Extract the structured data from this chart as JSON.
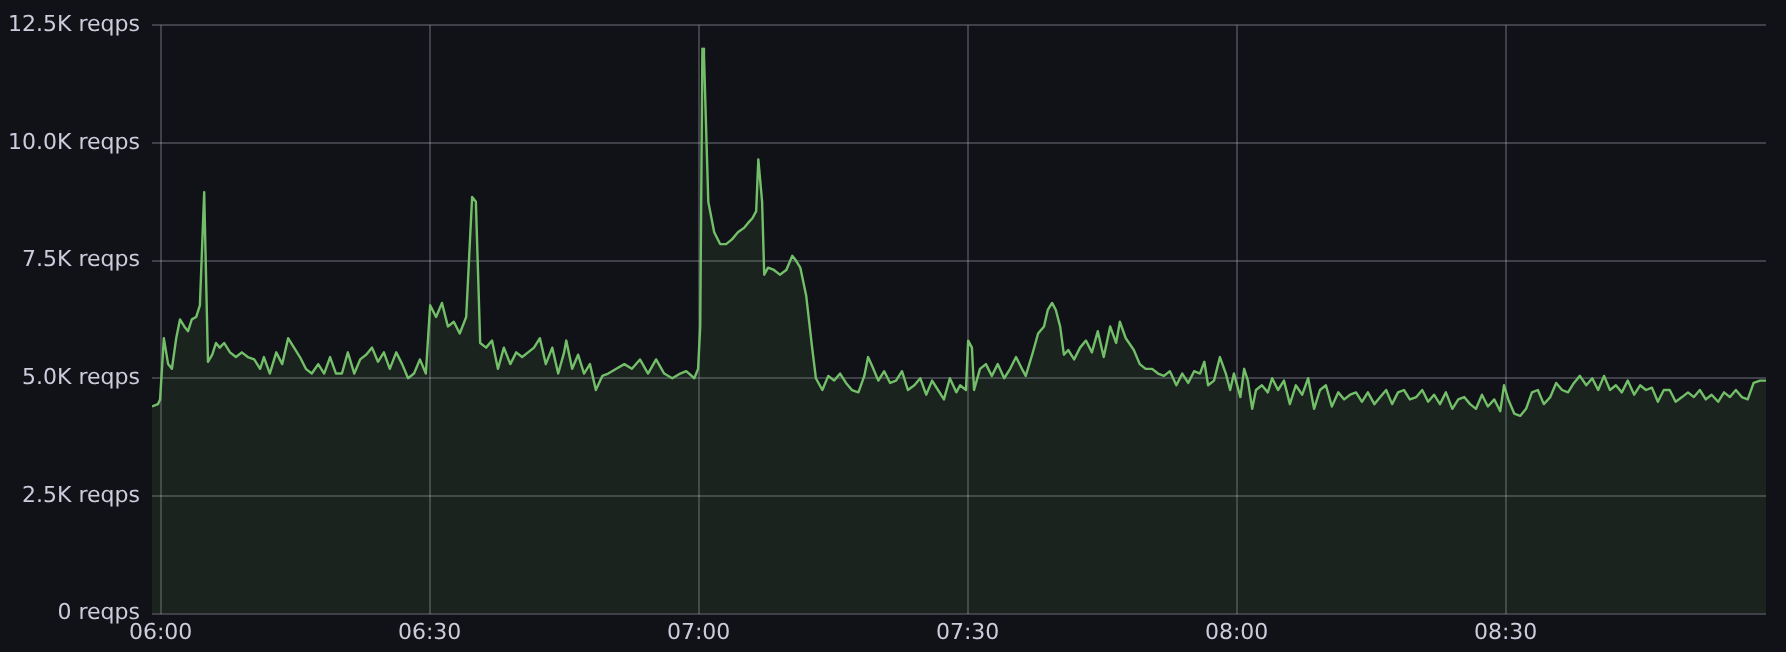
{
  "chart_data": {
    "type": "area",
    "xlim": [
      5.984,
      8.984
    ],
    "xticks": [
      {
        "value": 6,
        "label": "06:00"
      },
      {
        "value": 6.5,
        "label": "06:30"
      },
      {
        "value": 7,
        "label": "07:00"
      },
      {
        "value": 7.5,
        "label": "07:30"
      },
      {
        "value": 8,
        "label": "08:00"
      },
      {
        "value": 8.5,
        "label": "08:30"
      }
    ],
    "ylim": [
      0,
      12500
    ],
    "yticks": [
      {
        "value": 0,
        "label": "0 reqps"
      },
      {
        "value": 2500,
        "label": "2.5K reqps"
      },
      {
        "value": 5000,
        "label": "5.0K reqps"
      },
      {
        "value": 7500,
        "label": "7.5K reqps"
      },
      {
        "value": 10000,
        "label": "10.0K reqps"
      },
      {
        "value": 12500,
        "label": "12.5K reqps"
      }
    ],
    "grid": true,
    "legend": false,
    "marker": "none",
    "line_style": "solid",
    "series": [
      {
        "color": "#73bf69",
        "x": [
          5.984,
          5.995,
          5.999,
          6.006,
          6.014,
          6.021,
          6.029,
          6.036,
          6.044,
          6.051,
          6.058,
          6.066,
          6.073,
          6.081,
          6.088,
          6.096,
          6.103,
          6.11,
          6.118,
          6.129,
          6.14,
          6.151,
          6.162,
          6.174,
          6.185,
          6.192,
          6.203,
          6.215,
          6.226,
          6.237,
          6.248,
          6.259,
          6.27,
          6.281,
          6.293,
          6.304,
          6.315,
          6.326,
          6.337,
          6.348,
          6.36,
          6.371,
          6.382,
          6.393,
          6.404,
          6.415,
          6.426,
          6.438,
          6.449,
          6.46,
          6.471,
          6.482,
          6.493,
          6.501,
          6.512,
          6.523,
          6.534,
          6.545,
          6.556,
          6.568,
          6.579,
          6.586,
          6.594,
          6.605,
          6.616,
          6.627,
          6.638,
          6.65,
          6.661,
          6.672,
          6.683,
          6.694,
          6.705,
          6.716,
          6.728,
          6.739,
          6.75,
          6.754,
          6.765,
          6.776,
          6.787,
          6.798,
          6.809,
          6.821,
          6.832,
          6.847,
          6.862,
          6.876,
          6.891,
          6.906,
          6.921,
          6.936,
          6.951,
          6.966,
          6.977,
          6.992,
          6.999,
          7.003,
          7.007,
          7.01,
          7.018,
          7.029,
          7.04,
          7.051,
          7.062,
          7.073,
          7.085,
          7.092,
          7.1,
          7.107,
          7.111,
          7.118,
          7.122,
          7.129,
          7.14,
          7.151,
          7.163,
          7.174,
          7.181,
          7.189,
          7.2,
          7.211,
          7.218,
          7.23,
          7.241,
          7.252,
          7.263,
          7.274,
          7.285,
          7.297,
          7.308,
          7.315,
          7.323,
          7.334,
          7.345,
          7.356,
          7.367,
          7.378,
          7.389,
          7.401,
          7.412,
          7.423,
          7.434,
          7.445,
          7.456,
          7.467,
          7.479,
          7.486,
          7.497,
          7.501,
          7.508,
          7.512,
          7.523,
          7.534,
          7.545,
          7.556,
          7.568,
          7.579,
          7.59,
          7.601,
          7.608,
          7.62,
          7.631,
          7.642,
          7.649,
          7.657,
          7.664,
          7.672,
          7.679,
          7.687,
          7.698,
          7.709,
          7.72,
          7.731,
          7.742,
          7.753,
          7.765,
          7.776,
          7.783,
          7.794,
          7.809,
          7.82,
          7.831,
          7.843,
          7.854,
          7.865,
          7.876,
          7.888,
          7.899,
          7.91,
          7.921,
          7.932,
          7.94,
          7.947,
          7.958,
          7.969,
          7.98,
          7.988,
          7.995,
          8.007,
          8.014,
          8.021,
          8.029,
          8.036,
          8.047,
          8.058,
          8.066,
          8.077,
          8.088,
          8.099,
          8.11,
          8.122,
          8.133,
          8.144,
          8.155,
          8.166,
          8.177,
          8.189,
          8.2,
          8.211,
          8.222,
          8.233,
          8.244,
          8.256,
          8.267,
          8.278,
          8.289,
          8.3,
          8.311,
          8.322,
          8.334,
          8.345,
          8.356,
          8.367,
          8.378,
          8.389,
          8.401,
          8.412,
          8.423,
          8.434,
          8.445,
          8.456,
          8.467,
          8.479,
          8.49,
          8.497,
          8.505,
          8.516,
          8.527,
          8.538,
          8.549,
          8.56,
          8.571,
          8.583,
          8.594,
          8.605,
          8.616,
          8.627,
          8.638,
          8.65,
          8.661,
          8.672,
          8.683,
          8.694,
          8.705,
          8.716,
          8.727,
          8.739,
          8.75,
          8.761,
          8.772,
          8.783,
          8.794,
          8.805,
          8.816,
          8.828,
          8.839,
          8.85,
          8.861,
          8.872,
          8.883,
          8.895,
          8.906,
          8.917,
          8.928,
          8.939,
          8.95,
          8.961,
          8.973,
          8.984
        ],
        "values": [
          4400,
          4450,
          4550,
          5850,
          5300,
          5200,
          5850,
          6250,
          6100,
          6000,
          6250,
          6300,
          6550,
          8950,
          5350,
          5500,
          5750,
          5650,
          5750,
          5550,
          5450,
          5550,
          5450,
          5400,
          5200,
          5450,
          5100,
          5550,
          5300,
          5850,
          5650,
          5450,
          5200,
          5100,
          5300,
          5100,
          5450,
          5100,
          5100,
          5550,
          5100,
          5400,
          5500,
          5650,
          5350,
          5550,
          5200,
          5550,
          5300,
          5000,
          5100,
          5400,
          5100,
          6550,
          6300,
          6600,
          6100,
          6200,
          5950,
          6300,
          8850,
          8750,
          5750,
          5650,
          5800,
          5200,
          5650,
          5300,
          5550,
          5450,
          5550,
          5650,
          5850,
          5300,
          5650,
          5100,
          5550,
          5800,
          5200,
          5500,
          5100,
          5300,
          4750,
          5050,
          5100,
          5200,
          5300,
          5200,
          5400,
          5100,
          5400,
          5100,
          5000,
          5100,
          5150,
          5000,
          5200,
          6100,
          12000,
          11850,
          8750,
          8100,
          7850,
          7850,
          7950,
          8100,
          8200,
          8300,
          8400,
          8550,
          9650,
          8750,
          7200,
          7350,
          7300,
          7200,
          7300,
          7600,
          7500,
          7350,
          6750,
          5650,
          5000,
          4750,
          5050,
          4950,
          5100,
          4900,
          4750,
          4700,
          5050,
          5450,
          5250,
          4950,
          5150,
          4900,
          4950,
          5150,
          4750,
          4850,
          5000,
          4650,
          4950,
          4750,
          4550,
          5000,
          4700,
          4850,
          4750,
          5800,
          5650,
          4750,
          5200,
          5300,
          5050,
          5300,
          5000,
          5200,
          5450,
          5200,
          5050,
          5500,
          5950,
          6100,
          6450,
          6600,
          6450,
          6100,
          5500,
          5600,
          5400,
          5650,
          5800,
          5550,
          6000,
          5450,
          6100,
          5750,
          6200,
          5850,
          5600,
          5300,
          5200,
          5200,
          5100,
          5050,
          5150,
          4850,
          5100,
          4900,
          5150,
          5100,
          5350,
          4850,
          4950,
          5450,
          5100,
          4750,
          5100,
          4600,
          5200,
          4950,
          4350,
          4750,
          4850,
          4700,
          5000,
          4750,
          4950,
          4450,
          4850,
          4650,
          5000,
          4350,
          4750,
          4850,
          4400,
          4700,
          4550,
          4650,
          4700,
          4500,
          4700,
          4450,
          4600,
          4750,
          4450,
          4700,
          4750,
          4550,
          4600,
          4750,
          4500,
          4650,
          4450,
          4700,
          4350,
          4550,
          4600,
          4450,
          4350,
          4650,
          4400,
          4550,
          4300,
          4850,
          4550,
          4250,
          4200,
          4350,
          4700,
          4750,
          4450,
          4600,
          4900,
          4750,
          4700,
          4900,
          5050,
          4850,
          5000,
          4750,
          5050,
          4750,
          4850,
          4700,
          4950,
          4650,
          4850,
          4750,
          4800,
          4500,
          4750,
          4750,
          4500,
          4600,
          4700,
          4600,
          4750,
          4550,
          4650,
          4500,
          4700,
          4600,
          4750,
          4600,
          4550,
          4900,
          4950,
          4950
        ]
      }
    ]
  }
}
